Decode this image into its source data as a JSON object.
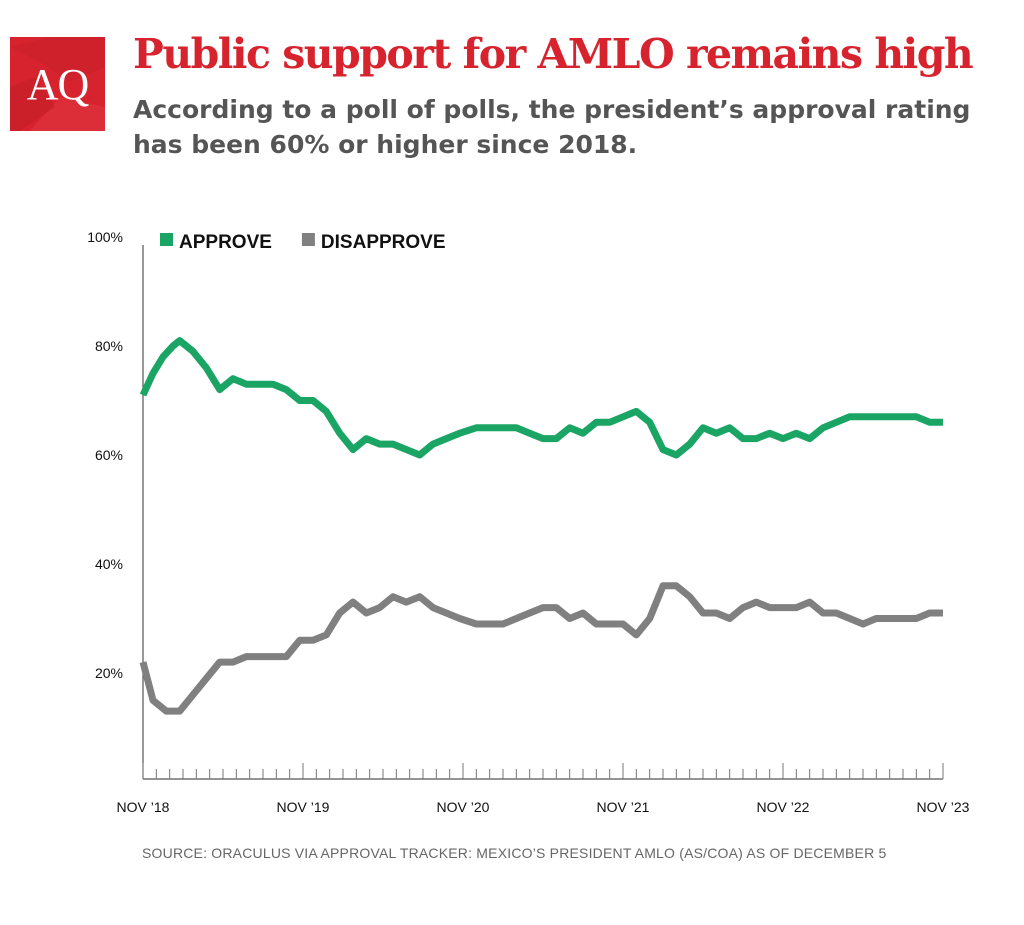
{
  "brand": {
    "logo_text": "AQ",
    "logo_color": "#d7232e"
  },
  "header": {
    "title": "Public support for AMLO remains high",
    "subtitle": "According to a poll of polls, the president’s approval rating has been 60% or higher since 2018."
  },
  "footer": {
    "source": "SOURCE: ORACULUS VIA APPROVAL TRACKER: MEXICO’S PRESIDENT AMLO (AS/COA) AS OF DECEMBER 5"
  },
  "chart_data": {
    "type": "line",
    "title": "Public support for AMLO remains high",
    "xlabel": "",
    "ylabel": "",
    "ylim": [
      0,
      100
    ],
    "xlim": [
      0,
      60
    ],
    "x_unit": "months since Nov 2018",
    "y_ticks": [
      {
        "value": 20,
        "label": "20%"
      },
      {
        "value": 40,
        "label": "40%"
      },
      {
        "value": 60,
        "label": "60%"
      },
      {
        "value": 80,
        "label": "80%"
      },
      {
        "value": 100,
        "label": "100%"
      }
    ],
    "x_ticks": [
      {
        "value": 0,
        "label": "NOV ’18"
      },
      {
        "value": 12,
        "label": "NOV ’19"
      },
      {
        "value": 24,
        "label": "NOV ’20"
      },
      {
        "value": 36,
        "label": "NOV ’21"
      },
      {
        "value": 48,
        "label": "NOV ’22"
      },
      {
        "value": 60,
        "label": "NOV ’23"
      }
    ],
    "legend_position": "top-left",
    "series": [
      {
        "name": "APPROVE",
        "color": "#1aa564",
        "points": [
          [
            0,
            71
          ],
          [
            0.75,
            75
          ],
          [
            1.5,
            78
          ],
          [
            2.25,
            80
          ],
          [
            2.75,
            81
          ],
          [
            3.75,
            79
          ],
          [
            4.75,
            76
          ],
          [
            5.75,
            72
          ],
          [
            6.75,
            74
          ],
          [
            7.75,
            73
          ],
          [
            9.75,
            73
          ],
          [
            10.75,
            72
          ],
          [
            11.75,
            70
          ],
          [
            12.75,
            70
          ],
          [
            13.75,
            68
          ],
          [
            14.75,
            64
          ],
          [
            15.75,
            61
          ],
          [
            16.75,
            63
          ],
          [
            17.75,
            62
          ],
          [
            18.75,
            62
          ],
          [
            20.75,
            60
          ],
          [
            21.75,
            62
          ],
          [
            22.75,
            63
          ],
          [
            23.75,
            64
          ],
          [
            25,
            65
          ],
          [
            26,
            65
          ],
          [
            27,
            65
          ],
          [
            28,
            65
          ],
          [
            29,
            64
          ],
          [
            30,
            63
          ],
          [
            31,
            63
          ],
          [
            32,
            65
          ],
          [
            33,
            64
          ],
          [
            34,
            66
          ],
          [
            35,
            66
          ],
          [
            36,
            67
          ],
          [
            37,
            68
          ],
          [
            38,
            66
          ],
          [
            39,
            61
          ],
          [
            40,
            60
          ],
          [
            41,
            62
          ],
          [
            42,
            65
          ],
          [
            43,
            64
          ],
          [
            44,
            65
          ],
          [
            45,
            63
          ],
          [
            46,
            63
          ],
          [
            47,
            64
          ],
          [
            48,
            63
          ],
          [
            49,
            64
          ],
          [
            50,
            63
          ],
          [
            51,
            65
          ],
          [
            52,
            66
          ],
          [
            53,
            67
          ],
          [
            54,
            67
          ],
          [
            55,
            67
          ],
          [
            56,
            67
          ],
          [
            57,
            67
          ],
          [
            58,
            67
          ],
          [
            59,
            66
          ],
          [
            60,
            66
          ]
        ]
      },
      {
        "name": "DISAPPROVE",
        "color": "#808080",
        "points": [
          [
            0,
            22
          ],
          [
            0.75,
            15
          ],
          [
            1.75,
            13
          ],
          [
            2.75,
            13
          ],
          [
            3.75,
            16
          ],
          [
            4.75,
            19
          ],
          [
            5.75,
            22
          ],
          [
            6.75,
            22
          ],
          [
            7.75,
            23
          ],
          [
            9.75,
            23
          ],
          [
            10.75,
            23
          ],
          [
            11.75,
            26
          ],
          [
            12.75,
            26
          ],
          [
            13.75,
            27
          ],
          [
            14.75,
            31
          ],
          [
            15.75,
            33
          ],
          [
            16.75,
            31
          ],
          [
            17.75,
            32
          ],
          [
            18.75,
            34
          ],
          [
            19.75,
            33
          ],
          [
            20.75,
            34
          ],
          [
            21.75,
            32
          ],
          [
            22.75,
            31
          ],
          [
            23.75,
            30
          ],
          [
            25,
            29
          ],
          [
            27,
            29
          ],
          [
            29,
            31
          ],
          [
            30,
            32
          ],
          [
            31,
            32
          ],
          [
            32,
            30
          ],
          [
            33,
            31
          ],
          [
            34,
            29
          ],
          [
            36,
            29
          ],
          [
            37,
            27
          ],
          [
            38,
            30
          ],
          [
            39,
            36
          ],
          [
            40,
            36
          ],
          [
            41,
            34
          ],
          [
            42,
            31
          ],
          [
            43,
            31
          ],
          [
            44,
            30
          ],
          [
            45,
            32
          ],
          [
            46,
            33
          ],
          [
            47,
            32
          ],
          [
            48,
            32
          ],
          [
            49,
            32
          ],
          [
            50,
            33
          ],
          [
            51,
            31
          ],
          [
            52,
            31
          ],
          [
            53,
            30
          ],
          [
            54,
            29
          ],
          [
            55,
            30
          ],
          [
            56,
            30
          ],
          [
            57,
            30
          ],
          [
            58,
            30
          ],
          [
            59,
            31
          ],
          [
            60,
            31
          ]
        ]
      }
    ]
  }
}
